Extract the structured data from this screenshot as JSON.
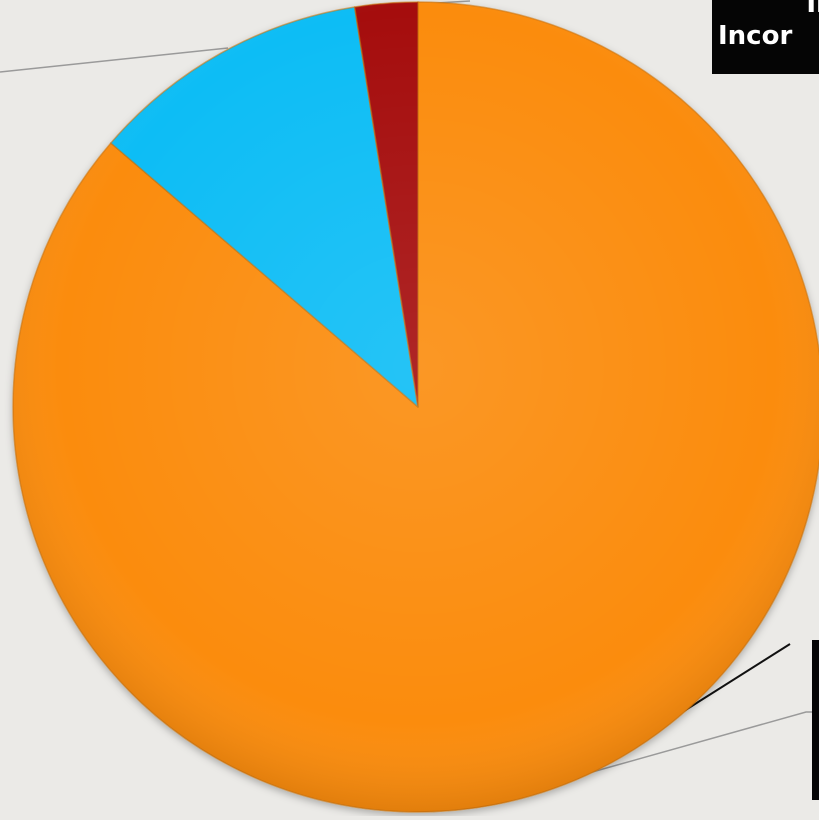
{
  "chart_data": {
    "type": "pie",
    "slices": [
      {
        "label": "",
        "value": 86.3,
        "color": "#fb8c0f"
      },
      {
        "label": "",
        "value": 11.2,
        "color": "#0ebdf5"
      },
      {
        "label": "",
        "value": 2.5,
        "color": "#a50e0e"
      }
    ],
    "start_angle_deg": 0,
    "direction": "clockwise",
    "annotations": {
      "top_right_line1": "Int",
      "top_right_line2": "Incor",
      "bottom_right": ""
    },
    "legend": "none",
    "title": ""
  }
}
